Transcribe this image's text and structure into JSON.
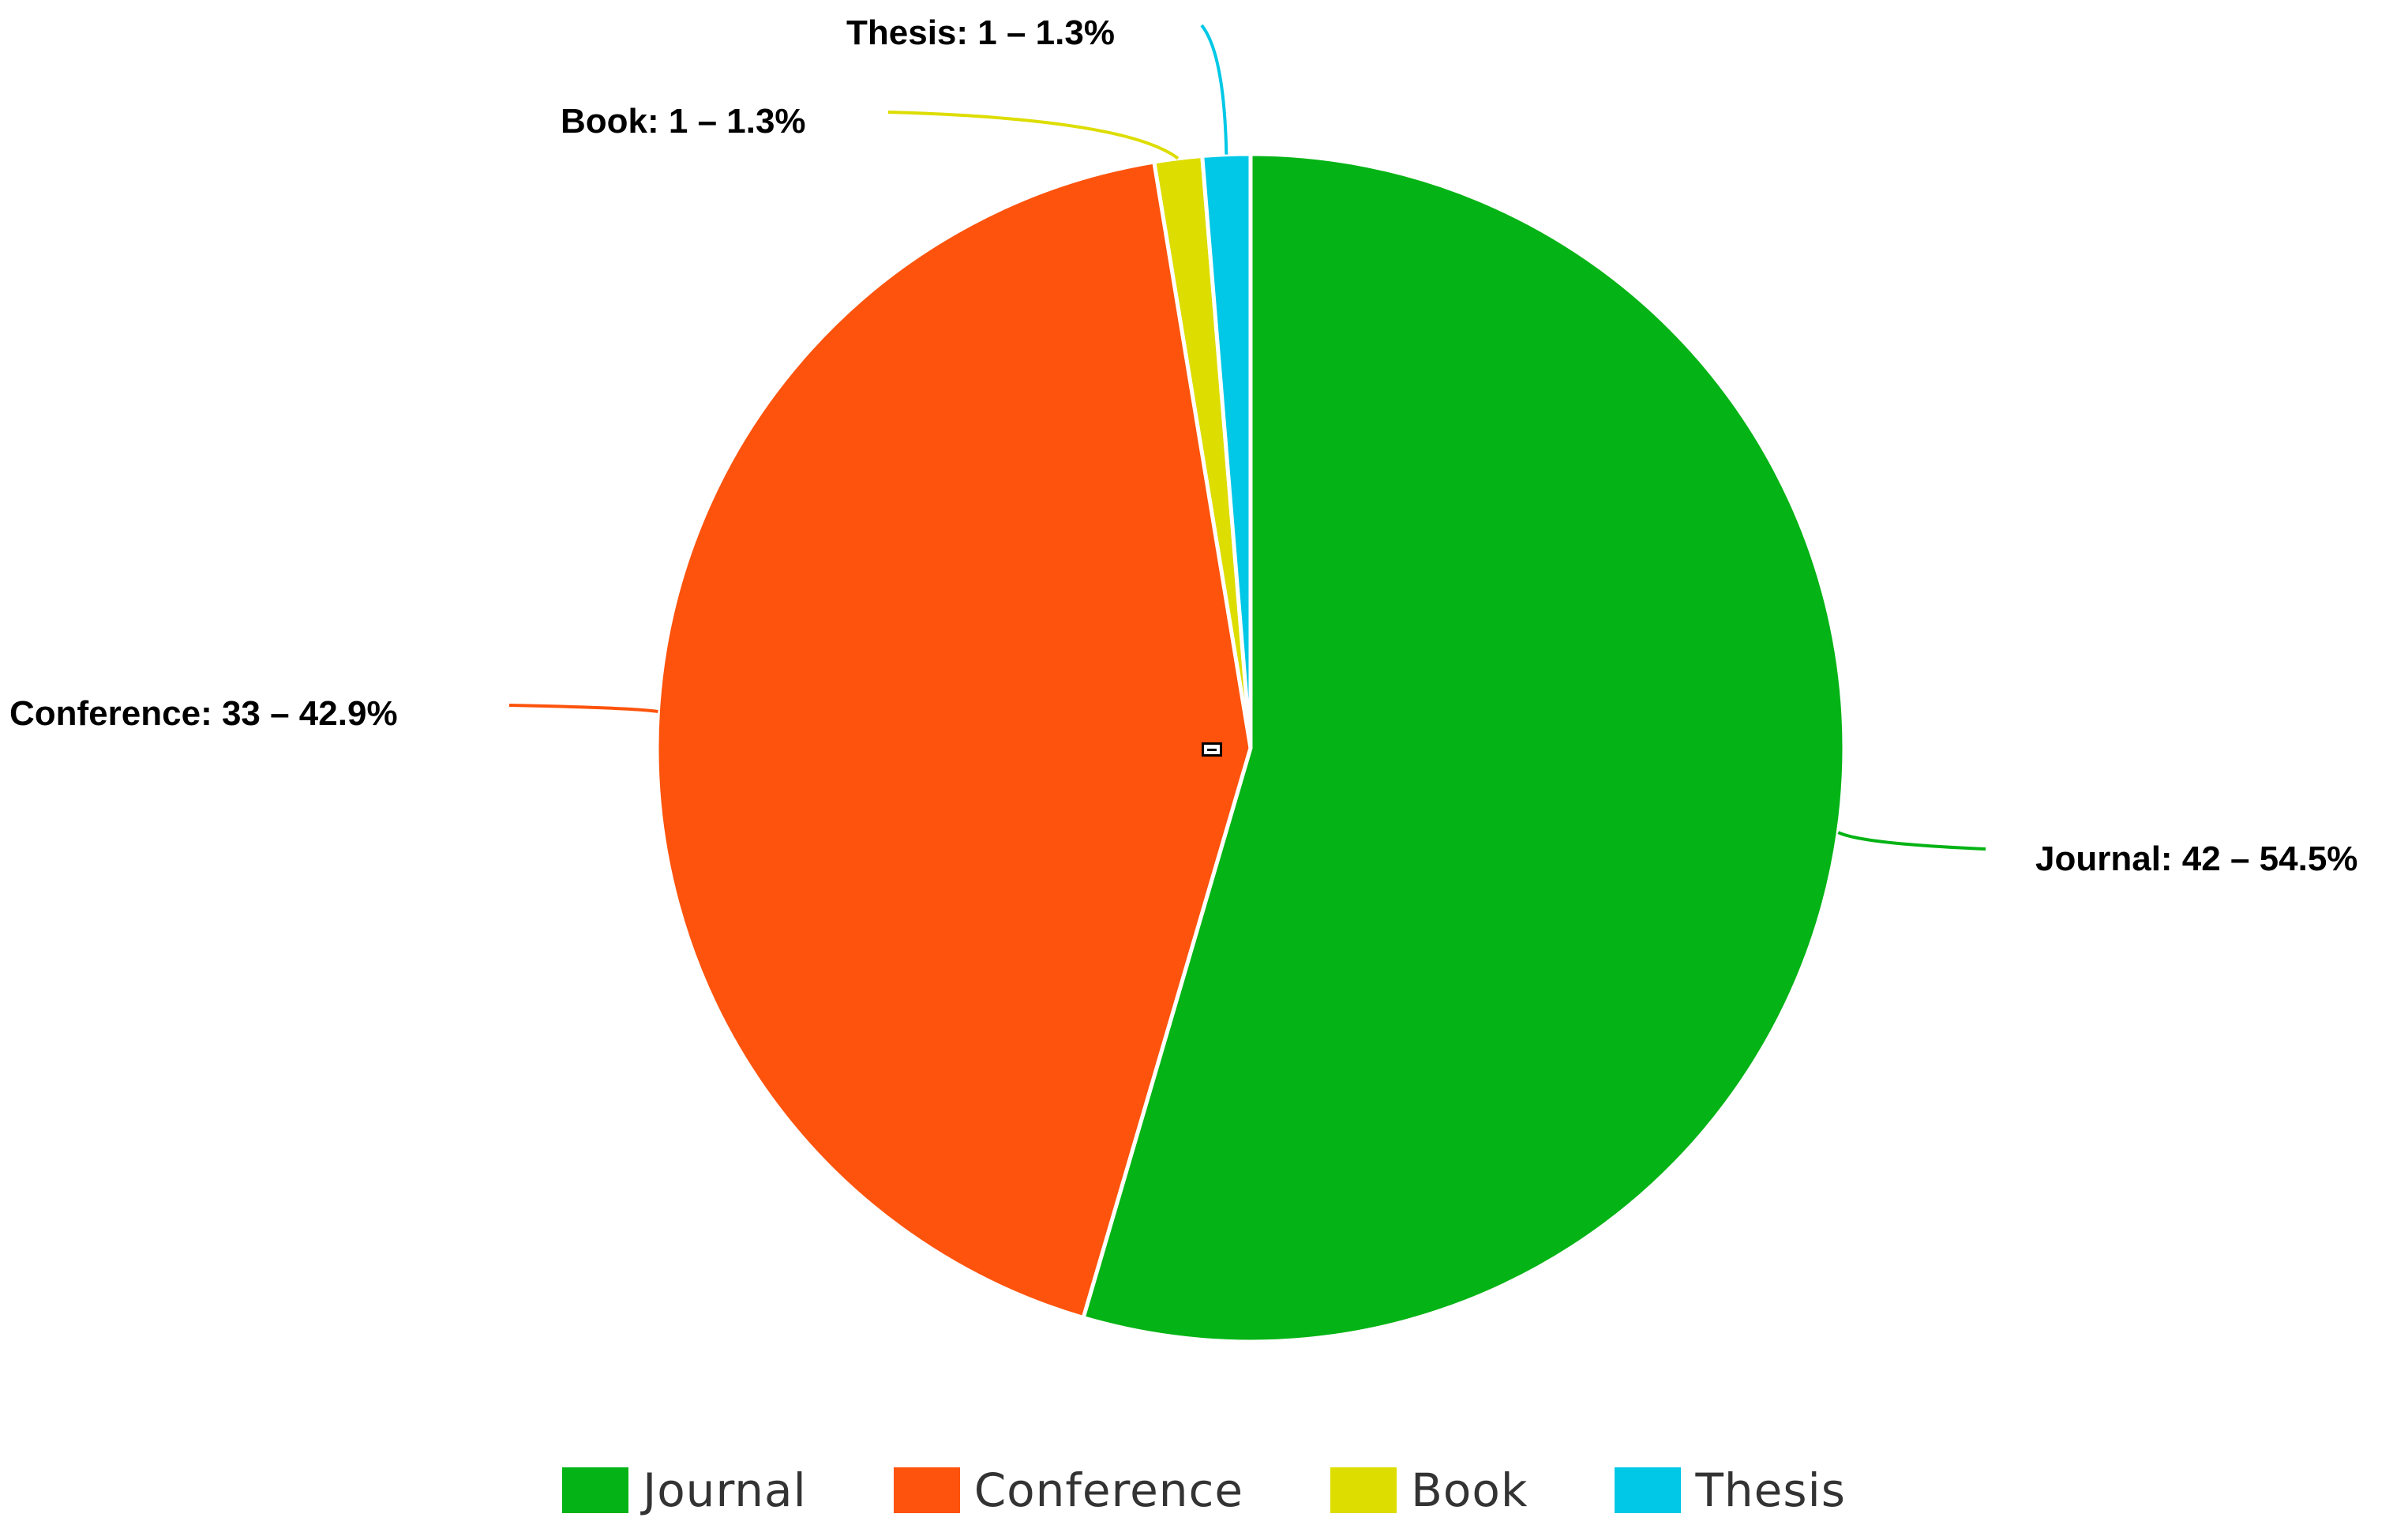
{
  "chart_data": {
    "type": "pie",
    "slices": [
      {
        "name": "Journal",
        "value": 42,
        "percent": "54.5%",
        "label": "Journal: 42 – 54.5%",
        "color": "#04b315"
      },
      {
        "name": "Conference",
        "value": 33,
        "percent": "42.9%",
        "label": "Conference: 33 – 42.9%",
        "color": "#fd530c"
      },
      {
        "name": "Book",
        "value": 1,
        "percent": "1.3%",
        "label": "Book: 1 – 1.3%",
        "color": "#dddd00"
      },
      {
        "name": "Thesis",
        "value": 1,
        "percent": "1.3%",
        "label": "Thesis: 1 – 1.3%",
        "color": "#00c8e6"
      }
    ],
    "legend": {
      "placement": "bottom",
      "entries": [
        "Journal",
        "Conference",
        "Book",
        "Thesis"
      ]
    }
  }
}
